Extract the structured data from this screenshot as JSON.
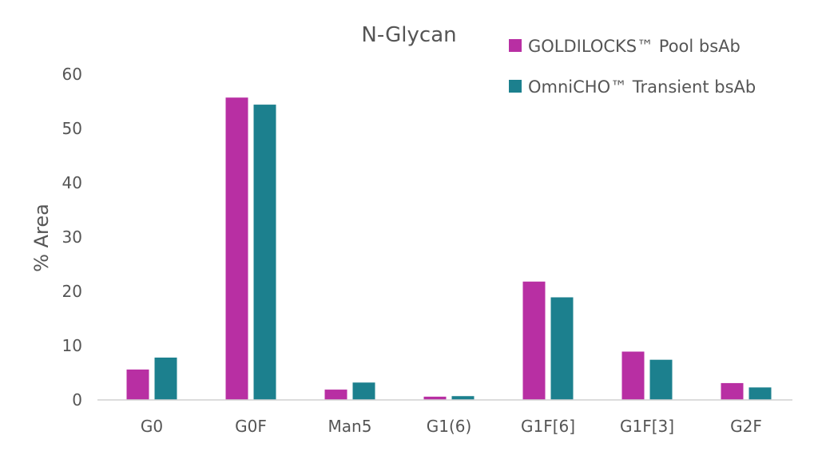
{
  "chart_data": {
    "type": "bar",
    "title": "N-Glycan",
    "xlabel": "",
    "ylabel": "% Area",
    "ylim": [
      0,
      60
    ],
    "yticks": [
      0,
      10,
      20,
      30,
      40,
      50,
      60
    ],
    "grid": false,
    "legend_position": "top-right",
    "categories": [
      "G0",
      "G0F",
      "Man5",
      "G1(6)",
      "G1F[6]",
      "G1F[3]",
      "G2F"
    ],
    "series": [
      {
        "name": "GOLDILOCKS™ Pool bsAb",
        "color": "#B82FA3",
        "values": [
          5.6,
          55.7,
          1.9,
          0.6,
          21.8,
          8.9,
          3.1
        ]
      },
      {
        "name": "OmniCHO™ Transient bsAb",
        "color": "#1C808E",
        "values": [
          7.8,
          54.4,
          3.2,
          0.7,
          18.9,
          7.4,
          2.3
        ]
      }
    ]
  }
}
